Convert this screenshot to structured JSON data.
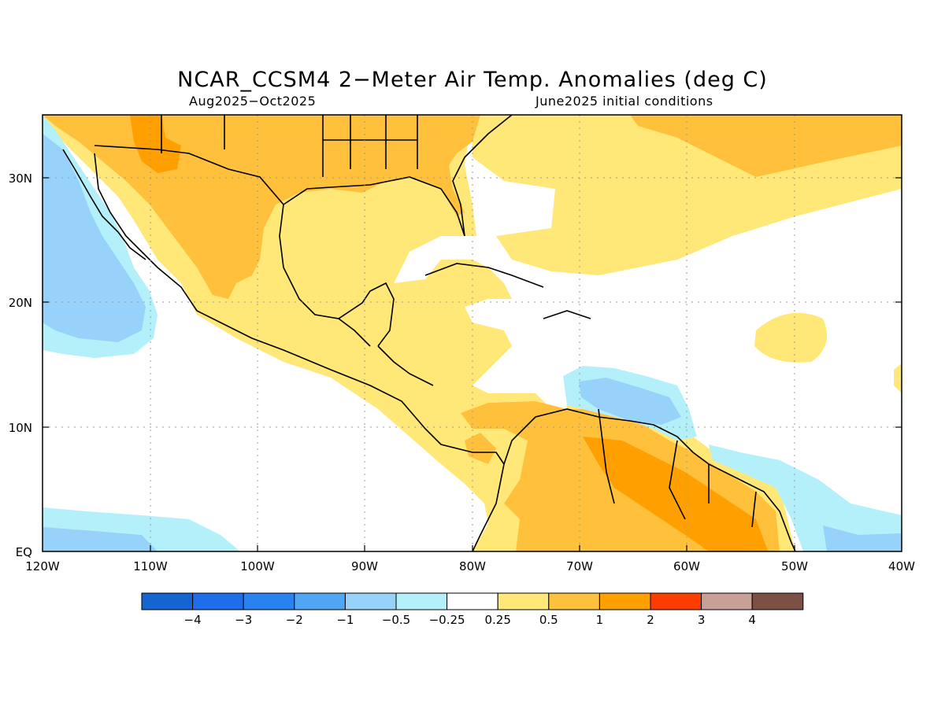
{
  "map": {
    "title": "NCAR_CCSM4 2−Meter Air Temp. Anomalies (deg C)",
    "period": "Aug2025−Oct2025",
    "init": "June2025 initial conditions",
    "lat_labels": [
      "30N",
      "20N",
      "10N",
      "EQ"
    ],
    "lon_labels": [
      "120W",
      "110W",
      "100W",
      "90W",
      "80W",
      "70W",
      "60W",
      "50W",
      "40W"
    ],
    "lat_range": [
      0,
      35
    ],
    "lon_range": [
      -120,
      -40
    ],
    "grid": "dotted"
  },
  "legend": {
    "labels": [
      "−4",
      "−3",
      "−2",
      "−1",
      "−0.5",
      "−0.25",
      "0.25",
      "0.5",
      "1",
      "2",
      "3",
      "4"
    ],
    "colors": [
      "#1464d2",
      "#1e6eeb",
      "#2882f0",
      "#50a5f5",
      "#96d2fa",
      "#b4f0fa",
      "#ffffff",
      "#ffe878",
      "#ffc03c",
      "#ffa000",
      "#ff3c00",
      "#c8a096",
      "#7d5046"
    ]
  },
  "colors": {
    "land_outline": "#000000",
    "gridline": "#999999"
  }
}
